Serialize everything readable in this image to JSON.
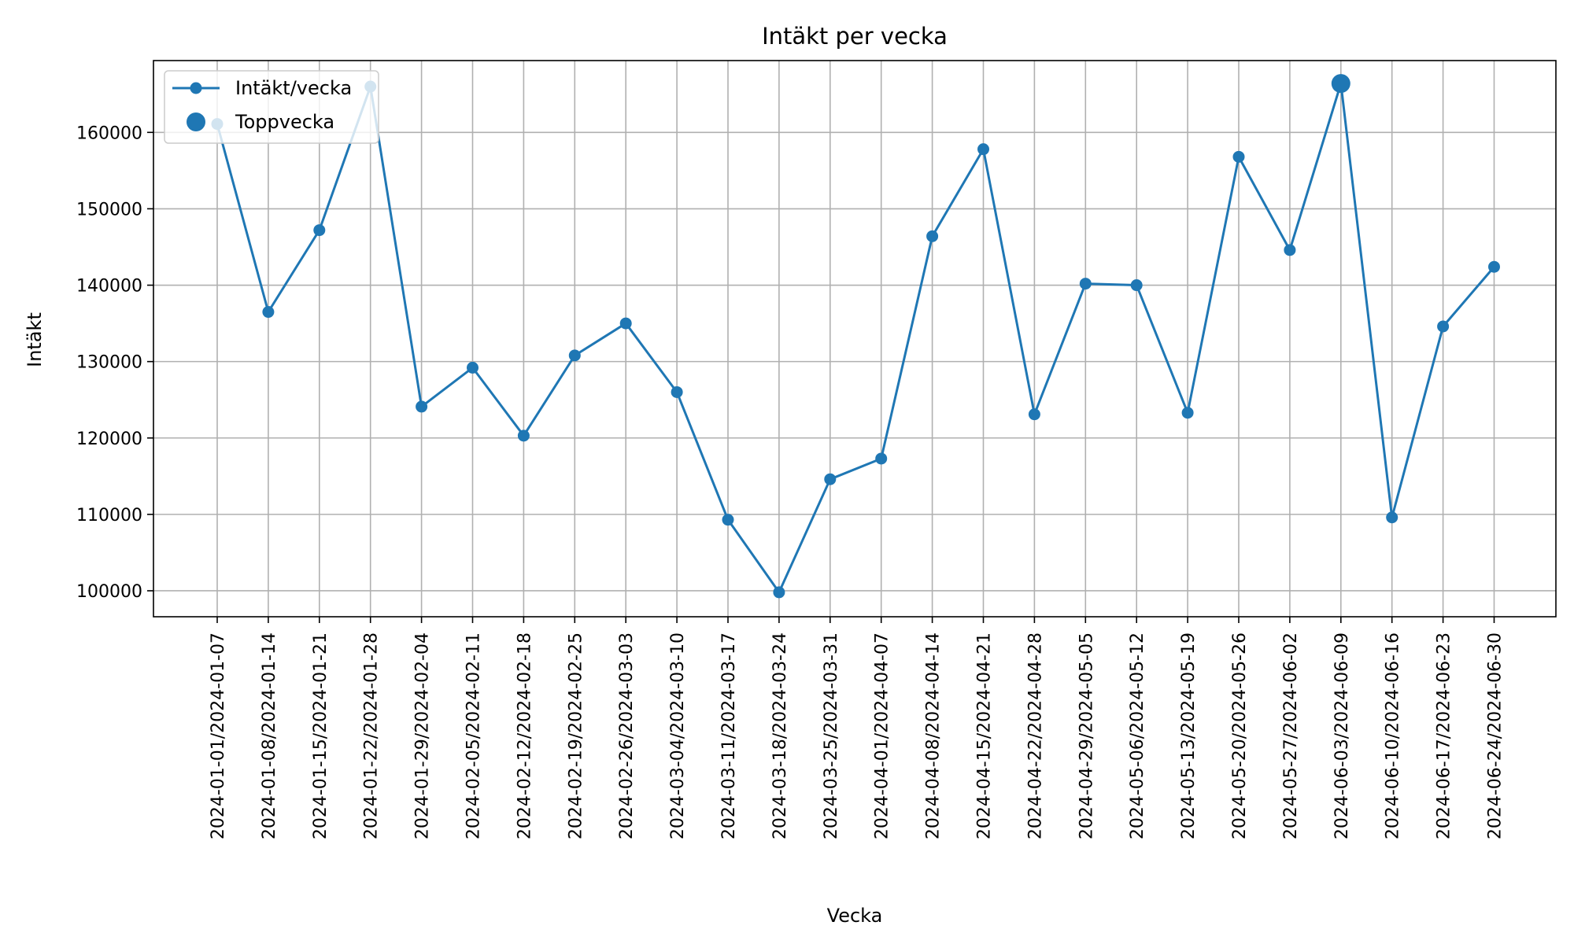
{
  "chart_data": {
    "type": "line",
    "title": "Intäkt per vecka",
    "xlabel": "Vecka",
    "ylabel": "Intäkt",
    "categories": [
      "2024-01-01/2024-01-07",
      "2024-01-08/2024-01-14",
      "2024-01-15/2024-01-21",
      "2024-01-22/2024-01-28",
      "2024-01-29/2024-02-04",
      "2024-02-05/2024-02-11",
      "2024-02-12/2024-02-18",
      "2024-02-19/2024-02-25",
      "2024-02-26/2024-03-03",
      "2024-03-04/2024-03-10",
      "2024-03-11/2024-03-17",
      "2024-03-18/2024-03-24",
      "2024-03-25/2024-03-31",
      "2024-04-01/2024-04-07",
      "2024-04-08/2024-04-14",
      "2024-04-15/2024-04-21",
      "2024-04-22/2024-04-28",
      "2024-04-29/2024-05-05",
      "2024-05-06/2024-05-12",
      "2024-05-13/2024-05-19",
      "2024-05-20/2024-05-26",
      "2024-05-27/2024-06-02",
      "2024-06-03/2024-06-09",
      "2024-06-10/2024-06-16",
      "2024-06-17/2024-06-23",
      "2024-06-24/2024-06-30"
    ],
    "series": [
      {
        "name": "Intäkt/vecka",
        "color": "#1f77b4",
        "values": [
          161100,
          136500,
          147200,
          166000,
          124100,
          129200,
          120300,
          130800,
          135000,
          126000,
          109300,
          99800,
          114600,
          117300,
          146400,
          157800,
          123100,
          140200,
          140000,
          123300,
          156800,
          144600,
          166400,
          109600,
          134600,
          142400
        ]
      }
    ],
    "highlight": {
      "name": "Toppvecka",
      "category": "2024-06-03/2024-06-09",
      "value": 166400
    },
    "yticks": [
      100000,
      110000,
      120000,
      130000,
      140000,
      150000,
      160000
    ],
    "ylim": [
      96600,
      169400
    ],
    "grid": true,
    "legend_position": "top-left"
  }
}
